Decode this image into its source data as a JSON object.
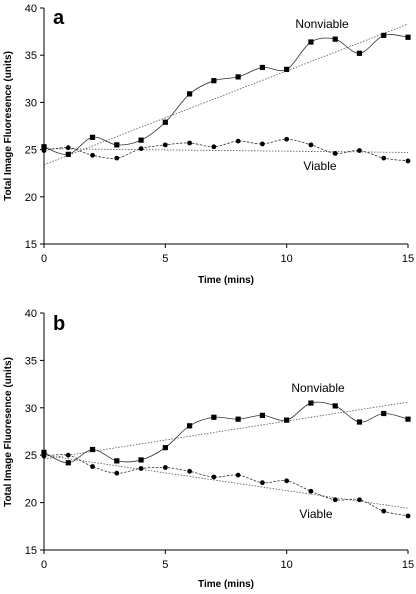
{
  "panels": [
    {
      "letter": "a",
      "xlabel": "Time (mins)",
      "ylabel": "Total Image Fluoresence (units)"
    },
    {
      "letter": "b",
      "xlabel": "Time (mins)",
      "ylabel": "Total Image Fluoresence (units)"
    }
  ],
  "chart_data": [
    {
      "type": "line",
      "title": "a",
      "xlabel": "Time (mins)",
      "ylabel": "Total Image Fluoresence (units)",
      "xlim": [
        0,
        15
      ],
      "ylim": [
        15,
        40
      ],
      "x_ticks": [
        0,
        5,
        10,
        15
      ],
      "y_ticks": [
        15,
        20,
        25,
        30,
        35,
        40
      ],
      "grid": false,
      "series": [
        {
          "name": "Nonviable",
          "marker": "square",
          "x": [
            0,
            1,
            2,
            3,
            4,
            5,
            6,
            7,
            8,
            9,
            10,
            11,
            12,
            13,
            14,
            15
          ],
          "values": [
            25.3,
            24.5,
            26.3,
            25.5,
            26.0,
            27.9,
            30.9,
            32.3,
            32.7,
            33.7,
            33.5,
            36.4,
            36.7,
            35.2,
            37.1,
            36.9
          ]
        },
        {
          "name": "Viable",
          "marker": "circle",
          "x": [
            0,
            1,
            2,
            3,
            4,
            5,
            6,
            7,
            8,
            9,
            10,
            11,
            12,
            13,
            14,
            15
          ],
          "values": [
            24.9,
            25.2,
            24.4,
            24.1,
            25.1,
            25.5,
            25.7,
            25.3,
            25.9,
            25.6,
            26.1,
            25.5,
            24.6,
            24.9,
            24.1,
            23.8
          ]
        }
      ],
      "trendlines": [
        {
          "series": "Nonviable",
          "y_at_xmin": 23.4,
          "y_at_xmax": 38.3
        },
        {
          "series": "Viable",
          "y_at_xmin": 25.1,
          "y_at_xmax": 24.7
        }
      ]
    },
    {
      "type": "line",
      "title": "b",
      "xlabel": "Time (mins)",
      "ylabel": "Total Image Fluoresence (units)",
      "xlim": [
        0,
        15
      ],
      "ylim": [
        15,
        40
      ],
      "x_ticks": [
        0,
        5,
        10,
        15
      ],
      "y_ticks": [
        15,
        20,
        25,
        30,
        35,
        40
      ],
      "grid": false,
      "series": [
        {
          "name": "Nonviable",
          "marker": "square",
          "x": [
            0,
            1,
            2,
            3,
            4,
            5,
            6,
            7,
            8,
            9,
            10,
            11,
            12,
            13,
            14,
            15
          ],
          "values": [
            25.3,
            24.2,
            25.6,
            24.4,
            24.5,
            25.8,
            28.1,
            29.0,
            28.8,
            29.2,
            28.7,
            30.5,
            30.2,
            28.5,
            29.4,
            28.8
          ]
        },
        {
          "name": "Viable",
          "marker": "circle",
          "x": [
            0,
            1,
            2,
            3,
            4,
            5,
            6,
            7,
            8,
            9,
            10,
            11,
            12,
            13,
            14,
            15
          ],
          "values": [
            24.9,
            25.0,
            23.8,
            23.1,
            23.6,
            23.7,
            23.3,
            22.7,
            22.9,
            22.1,
            22.3,
            21.2,
            20.3,
            20.3,
            19.1,
            18.6
          ]
        }
      ],
      "trendlines": [
        {
          "series": "Nonviable",
          "y_at_xmin": 24.6,
          "y_at_xmax": 30.6
        },
        {
          "series": "Viable",
          "y_at_xmin": 25.0,
          "y_at_xmax": 19.4
        }
      ]
    }
  ]
}
